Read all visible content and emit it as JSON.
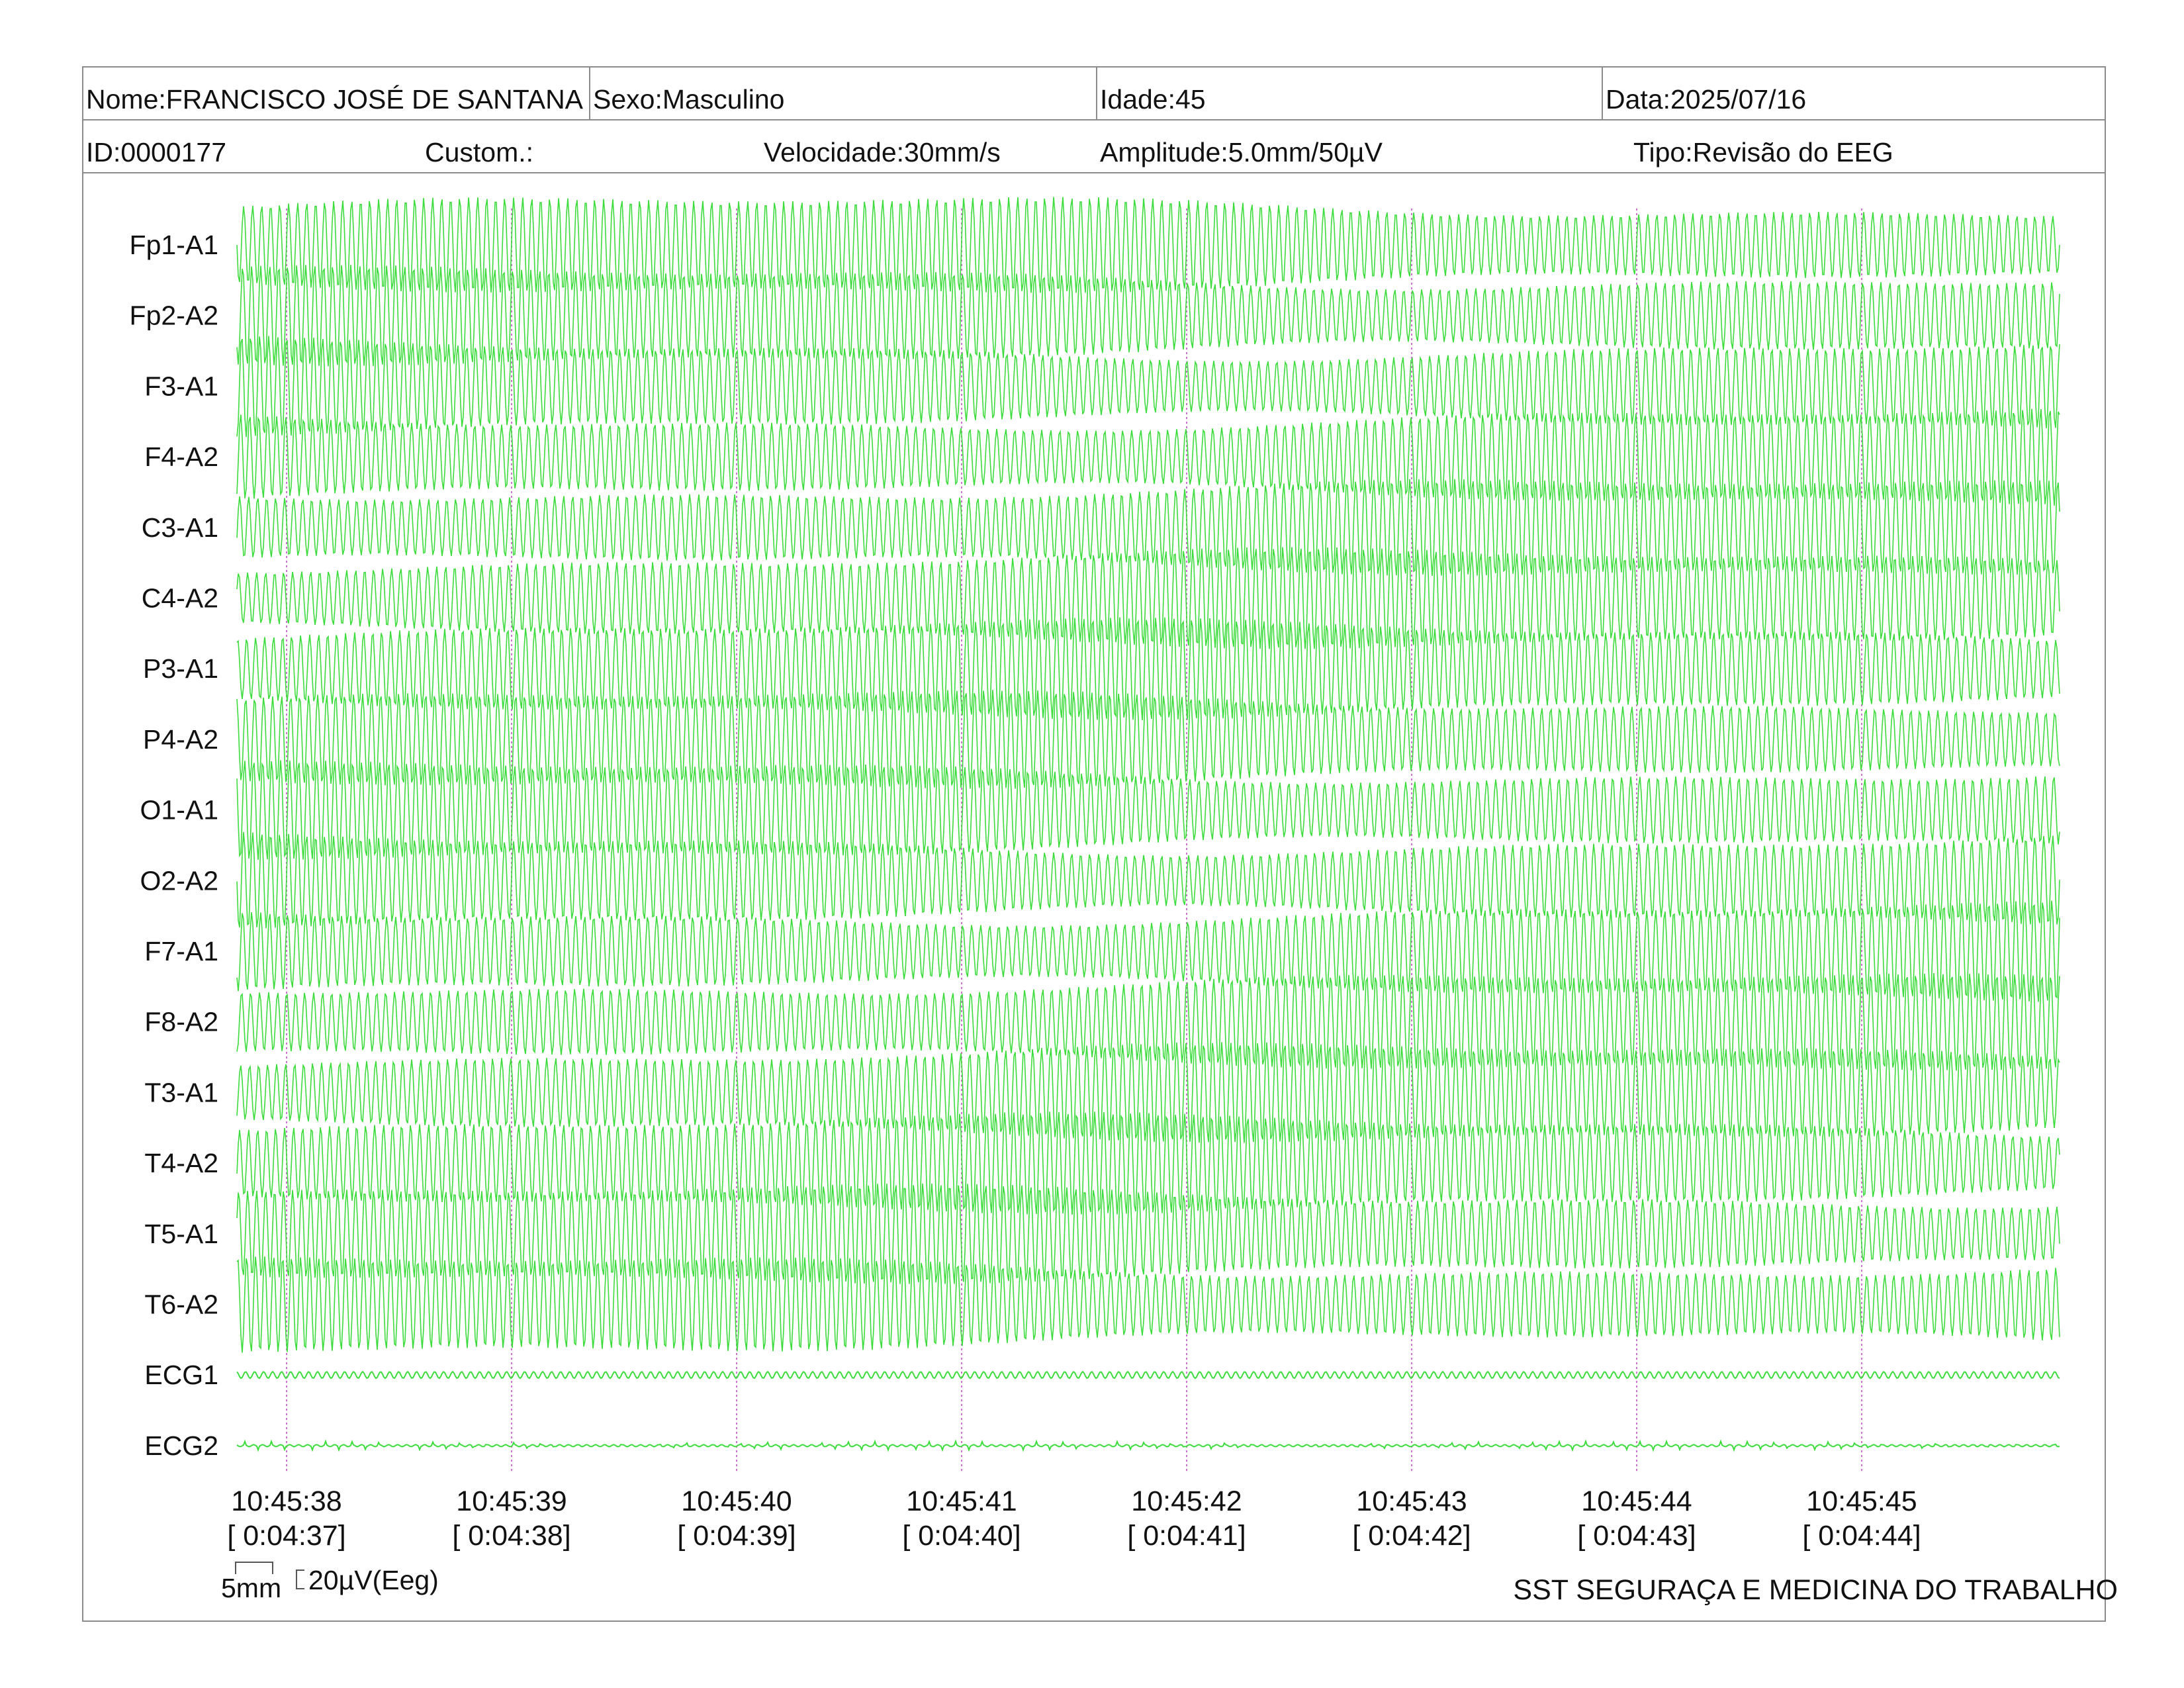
{
  "header": {
    "nome": "Nome:FRANCISCO JOSÉ DE SANTANA",
    "sexo": "Sexo:Masculino",
    "idade": "Idade:45",
    "data": "Data:2025/07/16",
    "id": "ID:0000177",
    "custom": "Custom.:",
    "velocidade": "Velocidade:30mm/s",
    "amplitude": "Amplitude:5.0mm/50µV",
    "tipo": "Tipo:Revisão do EEG"
  },
  "scale": {
    "length_label": "5mm",
    "amplitude_label": "20µV(Eeg)"
  },
  "footer": {
    "company": "SST SEGURAÇA E MEDICINA DO TRABALHO"
  },
  "colors": {
    "trace": "#3ddc3d",
    "time_marker": "#d070d0",
    "border": "#8c8c8c"
  },
  "chart_data": {
    "type": "line",
    "title": "",
    "xlabel": "",
    "ylabel": "",
    "channels": [
      "Fp1-A1",
      "Fp2-A2",
      "F3-A1",
      "F4-A2",
      "C3-A1",
      "C4-A2",
      "P3-A1",
      "P4-A2",
      "O1-A1",
      "O2-A2",
      "F7-A1",
      "F8-A2",
      "T3-A1",
      "T4-A2",
      "T5-A1",
      "T6-A2",
      "ECG1",
      "ECG2"
    ],
    "x_ticks": [
      {
        "time": "10:45:38",
        "elapsed": "[ 0:04:37]"
      },
      {
        "time": "10:45:39",
        "elapsed": "[ 0:04:38]"
      },
      {
        "time": "10:45:40",
        "elapsed": "[ 0:04:39]"
      },
      {
        "time": "10:45:41",
        "elapsed": "[ 0:04:40]"
      },
      {
        "time": "10:45:42",
        "elapsed": "[ 0:04:41]"
      },
      {
        "time": "10:45:43",
        "elapsed": "[ 0:04:42]"
      },
      {
        "time": "10:45:44",
        "elapsed": "[ 0:04:43]"
      },
      {
        "time": "10:45:45",
        "elapsed": "[ 0:04:44]"
      }
    ],
    "eeg_wave": {
      "cycles_per_second": 25,
      "relative_amplitude": "high"
    },
    "ecg_wave": {
      "cycles_per_second": 25,
      "relative_amplitude": "low"
    },
    "grid": false
  }
}
